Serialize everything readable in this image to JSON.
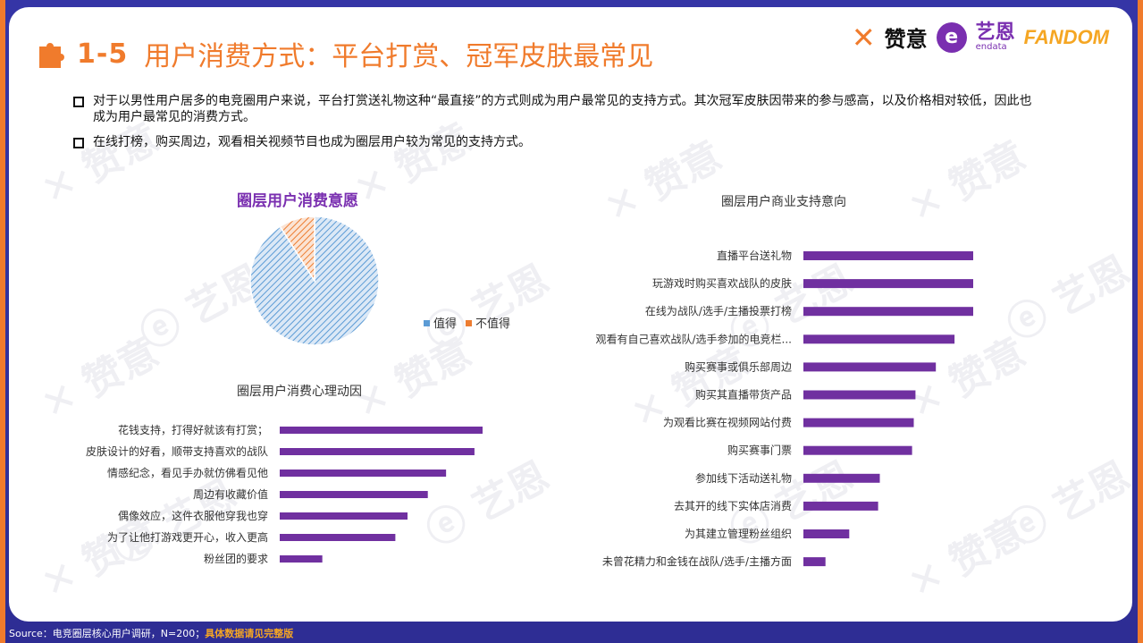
{
  "header": {
    "title_num": "1-5",
    "title": "用户消费方式：平台打赏、冠军皮肤最常见",
    "logos": {
      "zanyi": "赞意",
      "endata_cn": "艺恩",
      "endata_en": "endata",
      "fandom": "FANDOM"
    }
  },
  "bullets": [
    "对于以男性用户居多的电竞圈用户来说，平台打赏送礼物这种“最直接”的方式则成为用户最常见的支持方式。其次冠军皮肤因带来的参与感高，以及价格相对较低，因此也成为用户最常见的消费方式。",
    "在线打榜，购买周边，观看相关视频节目也成为圈层用户较为常见的支持方式。"
  ],
  "chart_data": [
    {
      "type": "pie",
      "title": "圈层用户消费意愿",
      "categories": [
        "值得",
        "不值得"
      ],
      "values": [
        91,
        9
      ],
      "colors": [
        "#5b9bd5",
        "#ed7d31"
      ],
      "legend": "right"
    },
    {
      "type": "bar",
      "orientation": "horizontal",
      "title": "圈层用户消费心理动因",
      "categories": [
        "花钱支持，打得好就该有打赏；",
        "皮肤设计的好看，顺带支持喜欢的战队",
        "情感纪念，看见手办就仿佛看见他",
        "周边有收藏价值",
        "偶像效应，这件衣服他穿我也穿",
        "为了让他打游戏更开心，收入更高",
        "粉丝团的要求"
      ],
      "values": [
        100,
        96,
        82,
        73,
        63,
        57,
        21
      ],
      "color": "#7030a0"
    },
    {
      "type": "bar",
      "orientation": "horizontal",
      "title": "圈层用户商业支持意向",
      "categories": [
        "直播平台送礼物",
        "玩游戏时购买喜欢战队的皮肤",
        "在线为战队/选手/主播投票打榜",
        "观看有自己喜欢战队/选手参加的电竞栏...",
        "购买赛事或俱乐部周边",
        "购买其直播带货产品",
        "为观看比赛在视频网站付费",
        "购买赛事门票",
        "参加线下活动送礼物",
        "去其开的线下实体店消费",
        "为其建立管理粉丝组织",
        "未曾花精力和金钱在战队/选手/主播方面"
      ],
      "values": [
        100,
        100,
        100,
        89,
        78,
        66,
        65,
        64,
        45,
        44,
        27,
        13
      ],
      "color": "#7030a0"
    }
  ],
  "footer": {
    "source": "Source：电竞圈层核心用户调研，N=200；",
    "highlight": "具体数据请见完整版"
  },
  "watermarks": [
    "赞意",
    "艺恩",
    "endata"
  ]
}
